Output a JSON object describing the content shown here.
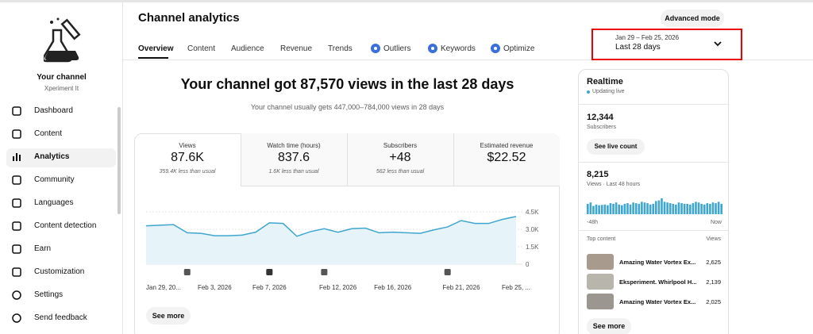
{
  "sidebar": {
    "channel_name": "Your channel",
    "channel_handle": "Xperiment It",
    "nav": [
      "Dashboard",
      "Content",
      "Analytics",
      "Community",
      "Languages",
      "Content detection",
      "Earn",
      "Customization"
    ],
    "footer_nav": [
      "Settings",
      "Send feedback"
    ]
  },
  "header": {
    "title": "Channel analytics",
    "advanced_mode": "Advanced mode",
    "tabs": [
      "Overview",
      "Content",
      "Audience",
      "Revenue",
      "Trends",
      "Outliers",
      "Keywords",
      "Optimize"
    ],
    "date_range": "Jan 29 – Feb 25, 2026",
    "period": "Last 28 days"
  },
  "summary": {
    "headline": "Your channel got 87,570 views in the last 28 days",
    "subline": "Your channel usually gets 447,000–784,000 views in 28 days"
  },
  "metrics": [
    {
      "label": "Views",
      "value": "87.6K",
      "note": "359.4K less than usual"
    },
    {
      "label": "Watch time (hours)",
      "value": "837.6",
      "note": "1.6K less than usual"
    },
    {
      "label": "Subscribers",
      "value": "+48",
      "note": "562 less than usual"
    },
    {
      "label": "Estimated revenue",
      "value": "$22.52"
    }
  ],
  "chart": {
    "type": "line",
    "categories": [
      "Jan 29, 20...",
      null,
      null,
      null,
      null,
      "Feb 3, 2026",
      null,
      null,
      null,
      "Feb 7, 2026",
      null,
      null,
      null,
      null,
      "Feb 12, 2026",
      null,
      null,
      null,
      "Feb 16, 2026",
      null,
      null,
      null,
      null,
      "Feb 21, 2026",
      null,
      null,
      null,
      "Feb 25, ..."
    ],
    "values": [
      3300,
      3350,
      3400,
      2700,
      2650,
      2450,
      2450,
      2500,
      2750,
      3550,
      3500,
      2400,
      2800,
      3050,
      2750,
      3050,
      3100,
      2700,
      2750,
      2700,
      2650,
      2950,
      3200,
      3750,
      3500,
      3500,
      3850,
      4100
    ],
    "color": "#3ea6cf",
    "ylim": [
      0,
      4500
    ],
    "yticks": [
      0,
      {
        "value": 1500,
        "label": "1.5K"
      },
      {
        "value": 3000,
        "label": "3.0K"
      },
      {
        "value": 4500,
        "label": "4.5K"
      }
    ],
    "grid": true
  },
  "see_more": "See more",
  "realtime": {
    "title": "Realtime",
    "status": "Updating live",
    "subscribers": "12,344",
    "subscribers_label": "Subscribers",
    "see_live_count": "See live count",
    "views": "8,215",
    "views_label": "Views · Last 48 hours",
    "hourly_views": [
      150,
      170,
      120,
      140,
      130,
      135,
      140,
      130,
      160,
      150,
      170,
      140,
      130,
      150,
      160,
      140,
      170,
      160,
      150,
      180,
      170,
      160,
      140,
      150,
      190,
      200,
      230,
      180,
      170,
      160,
      150,
      140,
      170,
      160,
      150,
      150,
      140,
      160,
      180,
      170,
      150,
      140,
      160,
      150,
      170,
      160,
      180,
      150
    ],
    "start_label": "-48h",
    "end_label": "Now",
    "top_content_label": "Top content",
    "views_column": "Views",
    "top_content": [
      {
        "title": "Amazing Water Vortex Ex...",
        "views": "2,625"
      },
      {
        "title": "Eksperiment. Whirlpool H...",
        "views": "2,139"
      },
      {
        "title": "Amazing Water Vortex Ex...",
        "views": "2,025"
      }
    ],
    "see_more": "See more"
  }
}
